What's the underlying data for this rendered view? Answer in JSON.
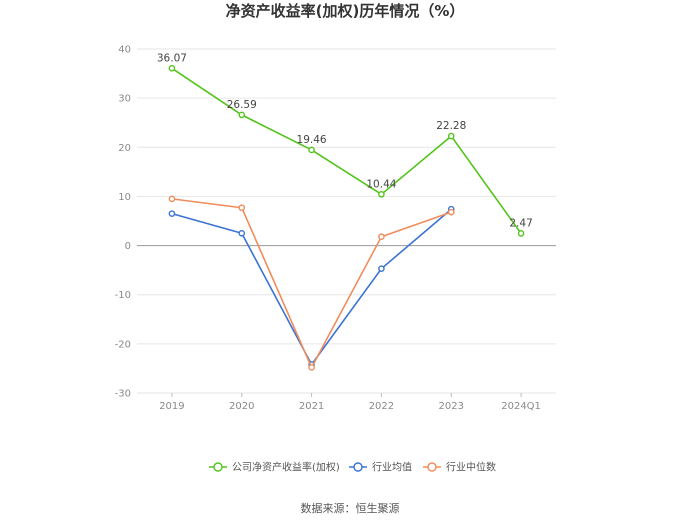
{
  "chart_data": {
    "type": "line",
    "title": "净资产收益率(加权)历年情况（%）",
    "categories": [
      "2019",
      "2020",
      "2021",
      "2022",
      "2023",
      "2024Q1"
    ],
    "ylim": [
      -30,
      40
    ],
    "yticks": [
      40,
      30,
      20,
      10,
      0,
      -10,
      -20,
      -30
    ],
    "grid": true,
    "legend_position": "bottom",
    "series": [
      {
        "name": "公司净资产收益率(加权)",
        "color": "#52c41a",
        "values": [
          36.07,
          26.59,
          19.46,
          10.44,
          22.28,
          2.47
        ],
        "labels": [
          "36.07",
          "26.59",
          "19.46",
          "10.44",
          "22.28",
          "2.47"
        ]
      },
      {
        "name": "行业均值",
        "color": "#3b73d4",
        "values": [
          6.5,
          2.5,
          -24.2,
          -4.7,
          7.4,
          null
        ]
      },
      {
        "name": "行业中位数",
        "color": "#f08c5c",
        "values": [
          9.5,
          7.7,
          -24.8,
          1.8,
          6.8,
          null
        ]
      }
    ],
    "source": "数据来源：恒生聚源"
  }
}
